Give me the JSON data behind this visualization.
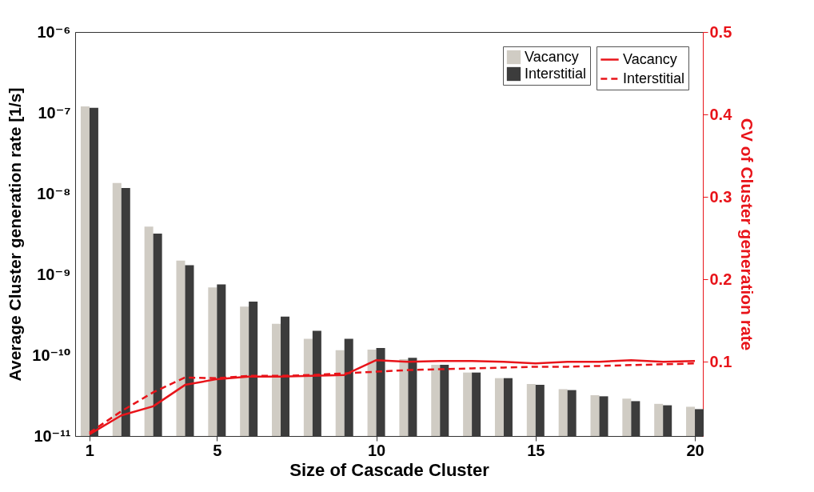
{
  "chart_data": {
    "type": "bar",
    "xlabel": "Size of Cascade Cluster",
    "ylabel": "Average Cluster generation rate [1/s]",
    "y2label": "CV of Cluster generation rate",
    "x": [
      1,
      2,
      3,
      4,
      5,
      6,
      7,
      8,
      9,
      10,
      11,
      12,
      13,
      14,
      15,
      16,
      17,
      18,
      19,
      20
    ],
    "xlim": [
      0.55,
      20.25
    ],
    "xticks": [
      1,
      5,
      10,
      15,
      20
    ],
    "log": "y",
    "ylim": [
      1e-11,
      1e-06
    ],
    "yticks": [
      {
        "value": 1e-11,
        "label": "10⁻¹¹"
      },
      {
        "value": 1e-10,
        "label": "10⁻¹⁰"
      },
      {
        "value": 1e-09,
        "label": "10⁻⁹"
      },
      {
        "value": 1e-08,
        "label": "10⁻⁸"
      },
      {
        "value": 1e-07,
        "label": "10⁻⁷"
      },
      {
        "value": 1e-06,
        "label": "10⁻⁶"
      }
    ],
    "y2lim": [
      0.01,
      0.5
    ],
    "y2ticks": [
      {
        "value": 0.1,
        "label": "0.1"
      },
      {
        "value": 0.2,
        "label": "0.2"
      },
      {
        "value": 0.3,
        "label": "0.3"
      },
      {
        "value": 0.4,
        "label": "0.4"
      },
      {
        "value": 0.5,
        "label": "0.5"
      }
    ],
    "legend": "top right",
    "grid": false,
    "series": [
      {
        "name": "Vacancy",
        "color": "#d0ccc4",
        "values": [
          1.2e-07,
          1.35e-08,
          3.9e-09,
          1.48e-09,
          6.9e-10,
          4e-10,
          2.45e-10,
          1.6e-10,
          1.15e-10,
          1.17e-10,
          8.9e-11,
          7.6e-11,
          6.1e-11,
          5.2e-11,
          4.4e-11,
          3.8e-11,
          3.2e-11,
          2.9e-11,
          2.5e-11,
          2.3e-11
        ]
      },
      {
        "name": "Interstitial",
        "color": "#3c3c3c",
        "values": [
          1.15e-07,
          1.17e-08,
          3.2e-09,
          1.3e-09,
          7.5e-10,
          4.6e-10,
          3e-10,
          2e-10,
          1.6e-10,
          1.23e-10,
          9.3e-11,
          7.6e-11,
          6.1e-11,
          5.2e-11,
          4.3e-11,
          3.7e-11,
          3.1e-11,
          2.7e-11,
          2.4e-11,
          2.15e-11
        ]
      },
      {
        "name": "Vacancy",
        "type": "line",
        "axis": "y2",
        "line_style": "solid",
        "color": "#e8141a",
        "values": [
          0.012,
          0.035,
          0.046,
          0.072,
          0.079,
          0.082,
          0.082,
          0.083,
          0.084,
          0.102,
          0.1,
          0.101,
          0.101,
          0.1,
          0.098,
          0.1,
          0.1,
          0.102,
          0.1,
          0.101
        ]
      },
      {
        "name": "Interstitial",
        "type": "line",
        "axis": "y2",
        "line_style": "dashed",
        "color": "#e8141a",
        "values": [
          0.014,
          0.04,
          0.063,
          0.081,
          0.08,
          0.083,
          0.083,
          0.084,
          0.086,
          0.088,
          0.09,
          0.091,
          0.092,
          0.093,
          0.094,
          0.094,
          0.095,
          0.096,
          0.097,
          0.098
        ]
      }
    ]
  }
}
